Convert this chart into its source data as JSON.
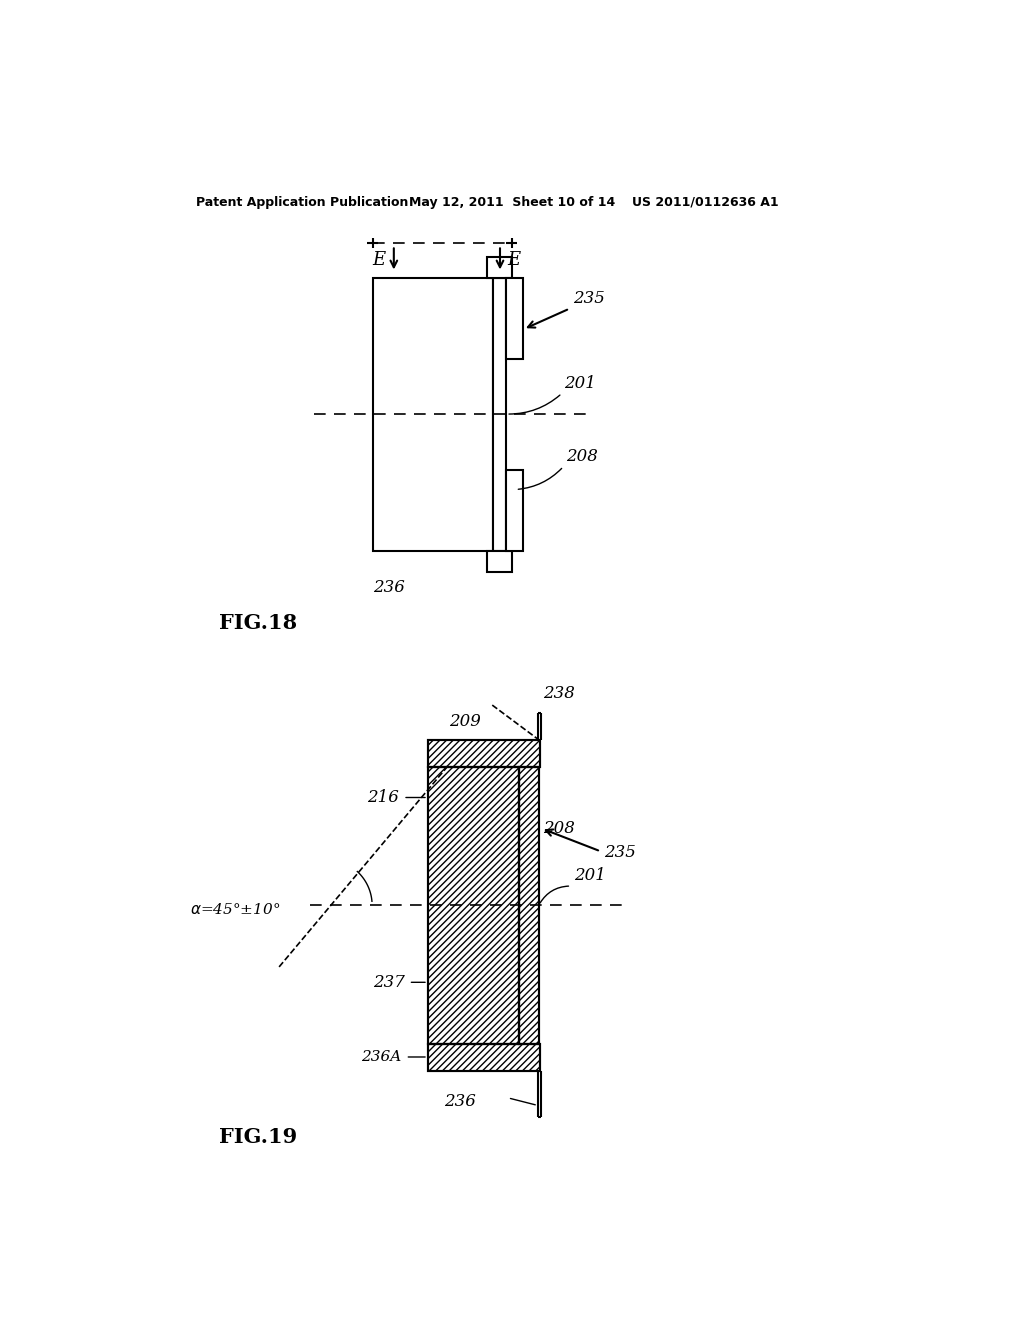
{
  "bg_color": "#ffffff",
  "header_text": "Patent Application Publication",
  "header_date": "May 12, 2011  Sheet 10 of 14",
  "header_patent": "US 2011/0112636 A1",
  "fig18_label": "FIG.18",
  "fig19_label": "FIG.19",
  "line_color": "#000000"
}
